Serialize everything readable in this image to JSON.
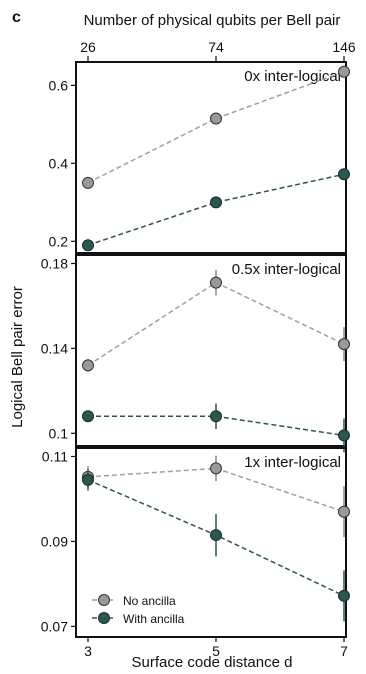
{
  "panel_label": "c",
  "chart_data": {
    "type": "scatter",
    "top_axis": {
      "label": "Number of physical qubits per Bell pair",
      "ticks": [
        "26",
        "74",
        "146"
      ]
    },
    "xlabel": "Surface code distance d",
    "ylabel": "Logical Bell pair error",
    "x": [
      3,
      5,
      7
    ],
    "xlim": [
      3,
      7
    ],
    "x_ticks": [
      "3",
      "5",
      "7"
    ],
    "legend": {
      "placement": "bottom-left",
      "entries": [
        "No ancilla",
        "With ancilla"
      ]
    },
    "colors": {
      "no_ancilla": "#999999",
      "with_ancilla": "#2e5651",
      "line_no": "#a0a0a0",
      "line_with": "#2e5651"
    },
    "panels": [
      {
        "title": "0x inter-logical",
        "ylim": [
          0.17,
          0.66
        ],
        "y_ticks": [
          0.2,
          0.4,
          0.6
        ],
        "y_tick_labels": [
          "0.2",
          "0.4",
          "0.6"
        ],
        "series": [
          {
            "name": "No ancilla",
            "values": [
              0.35,
              0.515,
              0.635
            ],
            "err": [
              0.004,
              0.004,
              0.004
            ]
          },
          {
            "name": "With ancilla",
            "values": [
              0.19,
              0.3,
              0.372
            ],
            "err": [
              0.004,
              0.004,
              0.004
            ]
          }
        ]
      },
      {
        "title": "0.5x inter-logical",
        "ylim": [
          0.094,
          0.184
        ],
        "y_ticks": [
          0.1,
          0.14,
          0.18
        ],
        "y_tick_labels": [
          "0.1",
          "0.14",
          "0.18"
        ],
        "series": [
          {
            "name": "No ancilla",
            "values": [
              0.132,
              0.171,
              0.142
            ],
            "err": [
              0.003,
              0.006,
              0.008
            ]
          },
          {
            "name": "With ancilla",
            "values": [
              0.108,
              0.108,
              0.099
            ],
            "err": [
              0.002,
              0.006,
              0.008
            ]
          }
        ]
      },
      {
        "title": "1x inter-logical",
        "ylim": [
          0.0675,
          0.112
        ],
        "y_ticks": [
          0.07,
          0.09,
          0.11
        ],
        "y_tick_labels": [
          "0.07",
          "0.09",
          "0.11"
        ],
        "series": [
          {
            "name": "No ancilla",
            "values": [
              0.1052,
              0.1072,
              0.097
            ],
            "err": [
              0.0025,
              0.003,
              0.006
            ]
          },
          {
            "name": "With ancilla",
            "values": [
              0.1045,
              0.0915,
              0.0772
            ],
            "err": [
              0.0025,
              0.005,
              0.006
            ]
          }
        ]
      }
    ]
  }
}
